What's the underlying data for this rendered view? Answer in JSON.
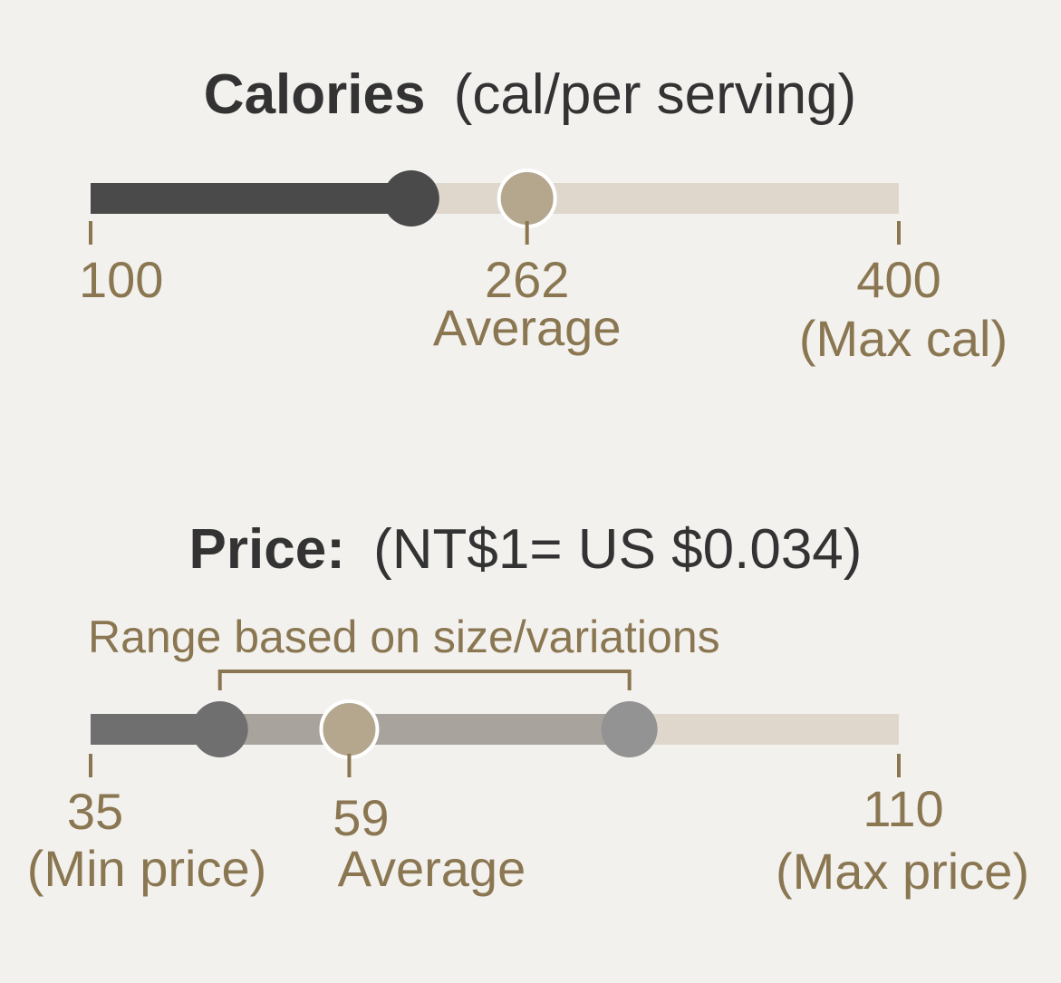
{
  "colors": {
    "background": "#f3f1ee",
    "track": "#dfd7cc",
    "calories_fill": "#4a4a4a",
    "price_min_fill": "#6f6f6f",
    "price_range_fill": "#a8a39c",
    "price_max_marker": "#939393",
    "average_marker": "#b5a78d",
    "label": "#8a7752",
    "title": "#333333"
  },
  "chart_data": [
    {
      "type": "range",
      "title": "Calories",
      "subtitle": "(cal/per serving)",
      "axis": {
        "min": 100,
        "max": 400
      },
      "value": 219,
      "average": 262,
      "ticks": [
        {
          "value": 100,
          "label": "100",
          "sublabel": ""
        },
        {
          "value": 262,
          "label": "262",
          "sublabel": "Average"
        },
        {
          "value": 400,
          "label": "400",
          "sublabel": "(Max cal)"
        }
      ]
    },
    {
      "type": "range",
      "title": "Price:",
      "subtitle": "(NT$1= US $0.034)",
      "axis": {
        "min": 35,
        "max": 110
      },
      "range": [
        47,
        85
      ],
      "average": 59,
      "range_annotation": "Range based on size/variations",
      "ticks": [
        {
          "value": 35,
          "label": "35",
          "sublabel": "(Min price)"
        },
        {
          "value": 59,
          "label": "59",
          "sublabel": "Average"
        },
        {
          "value": 110,
          "label": "110",
          "sublabel": "(Max price)"
        }
      ]
    }
  ]
}
